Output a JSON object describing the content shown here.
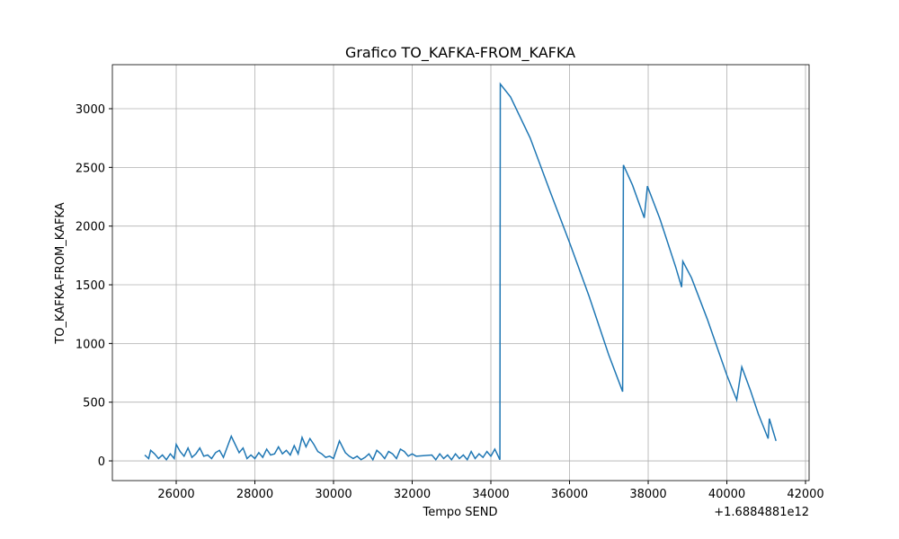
{
  "chart_data": {
    "type": "line",
    "title": "Grafico TO_KAFKA-FROM_KAFKA",
    "x_label": "Tempo SEND",
    "y_label": "TO_KAFKA-FROM_KAFKA",
    "x_offset_label": "+1.6884881e12",
    "xlim": [
      24377,
      42091
    ],
    "ylim": [
      -168,
      3375
    ],
    "xticks": [
      26000,
      28000,
      30000,
      32000,
      34000,
      36000,
      38000,
      40000,
      42000
    ],
    "yticks": [
      0,
      500,
      1000,
      1500,
      2000,
      2500,
      3000
    ],
    "grid": true,
    "series": [
      {
        "color": "#1f77b4",
        "x": [
          25200,
          25300,
          25350,
          25450,
          25550,
          25650,
          25750,
          25850,
          25950,
          26000,
          26100,
          26200,
          26300,
          26400,
          26500,
          26600,
          26700,
          26800,
          26900,
          27000,
          27100,
          27200,
          27300,
          27400,
          27500,
          27600,
          27700,
          27800,
          27900,
          28000,
          28100,
          28200,
          28300,
          28400,
          28500,
          28600,
          28700,
          28800,
          28900,
          29000,
          29100,
          29200,
          29300,
          29400,
          29500,
          29600,
          29700,
          29800,
          29900,
          30000,
          30150,
          30300,
          30400,
          30500,
          30600,
          30700,
          30800,
          30900,
          31000,
          31100,
          31200,
          31300,
          31400,
          31500,
          31600,
          31700,
          31800,
          31900,
          32000,
          32100,
          32500,
          32600,
          32700,
          32800,
          32900,
          33000,
          33100,
          33200,
          33300,
          33400,
          33500,
          33600,
          33700,
          33800,
          33900,
          34000,
          34100,
          34230,
          34240,
          34500,
          35000,
          35500,
          36000,
          36500,
          37000,
          37350,
          37370,
          37600,
          37900,
          37980,
          38300,
          38700,
          38850,
          38880,
          39100,
          39500,
          40000,
          40250,
          40380,
          40600,
          40800,
          41050,
          41080,
          41250
        ],
        "values": [
          50,
          20,
          90,
          60,
          20,
          50,
          10,
          60,
          20,
          140,
          80,
          40,
          110,
          30,
          60,
          110,
          40,
          50,
          20,
          70,
          90,
          30,
          120,
          210,
          140,
          70,
          110,
          20,
          50,
          20,
          70,
          30,
          100,
          50,
          60,
          120,
          60,
          90,
          50,
          130,
          60,
          200,
          120,
          190,
          140,
          80,
          60,
          30,
          40,
          20,
          170,
          70,
          40,
          20,
          40,
          10,
          30,
          60,
          10,
          90,
          60,
          20,
          80,
          60,
          20,
          100,
          80,
          40,
          60,
          40,
          50,
          10,
          60,
          20,
          50,
          10,
          60,
          20,
          50,
          10,
          80,
          20,
          60,
          30,
          80,
          40,
          100,
          10,
          3210,
          3100,
          2750,
          2300,
          1860,
          1400,
          900,
          590,
          2520,
          2350,
          2070,
          2340,
          2060,
          1650,
          1480,
          1700,
          1560,
          1210,
          730,
          520,
          800,
          600,
          400,
          190,
          360,
          170
        ]
      }
    ]
  }
}
